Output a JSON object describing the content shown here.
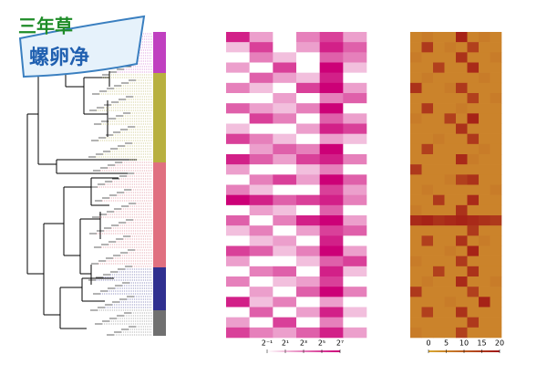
{
  "logo": {
    "line1": "三年草",
    "line2": "螺卵净"
  },
  "chart_data": [
    {
      "type": "heatmap",
      "low_color": "#ffffff",
      "high_color": "#cc0077",
      "xlim": [
        -1,
        7
      ],
      "xticks": [
        {
          "value": -1,
          "label": "2⁻¹"
        },
        {
          "value": 1,
          "label": "2¹"
        },
        {
          "value": 3,
          "label": "2³"
        },
        {
          "value": 5,
          "label": "2⁵"
        },
        {
          "value": 7,
          "label": "2⁷"
        }
      ],
      "rows": [
        [
          6,
          2,
          -1,
          3,
          5,
          2
        ],
        [
          1,
          5,
          -1,
          2,
          6,
          4
        ],
        [
          -1,
          3,
          1,
          -1,
          4,
          3
        ],
        [
          2,
          -1,
          5,
          -1,
          7,
          1
        ],
        [
          -1,
          4,
          2,
          1,
          6,
          -1
        ],
        [
          3,
          1,
          -1,
          5,
          7,
          2
        ],
        [
          -1,
          -1,
          2,
          -1,
          3,
          4
        ],
        [
          4,
          2,
          1,
          3,
          7,
          -1
        ],
        [
          -1,
          5,
          3,
          -1,
          4,
          2
        ],
        [
          1,
          -1,
          -1,
          2,
          6,
          5
        ],
        [
          5,
          3,
          1,
          -1,
          2,
          1
        ],
        [
          -1,
          2,
          4,
          3,
          7,
          -1
        ],
        [
          6,
          4,
          2,
          5,
          6,
          3
        ],
        [
          2,
          -1,
          -1,
          1,
          3,
          -1
        ],
        [
          -1,
          3,
          5,
          2,
          7,
          4
        ],
        [
          3,
          1,
          -1,
          -1,
          5,
          2
        ],
        [
          7,
          6,
          4,
          5,
          6,
          3
        ],
        [
          -1,
          2,
          1,
          -1,
          4,
          -1
        ],
        [
          4,
          -1,
          3,
          6,
          7,
          2
        ],
        [
          1,
          3,
          -1,
          2,
          5,
          4
        ],
        [
          -1,
          1,
          2,
          -1,
          6,
          -1
        ],
        [
          5,
          4,
          1,
          3,
          7,
          2
        ],
        [
          2,
          -1,
          -1,
          1,
          4,
          5
        ],
        [
          -1,
          3,
          4,
          -1,
          6,
          1
        ],
        [
          3,
          -1,
          1,
          2,
          5,
          -1
        ],
        [
          -1,
          2,
          -1,
          4,
          7,
          3
        ],
        [
          6,
          1,
          3,
          -1,
          2,
          -1
        ],
        [
          -1,
          4,
          -1,
          2,
          6,
          1
        ],
        [
          2,
          -1,
          5,
          -1,
          3,
          -1
        ],
        [
          5,
          3,
          2,
          4,
          6,
          2
        ]
      ]
    },
    {
      "type": "heatmap",
      "low_color": "#d9a832",
      "high_color": "#a01414",
      "xlim": [
        0,
        20
      ],
      "xticks": [
        0,
        5,
        10,
        15,
        20
      ],
      "rows": [
        [
          5,
          6,
          5,
          5,
          18,
          5,
          6,
          5
        ],
        [
          5,
          15,
          5,
          6,
          5,
          14,
          5,
          5
        ],
        [
          6,
          5,
          5,
          5,
          16,
          5,
          5,
          6
        ],
        [
          5,
          5,
          14,
          5,
          5,
          17,
          5,
          5
        ],
        [
          5,
          6,
          5,
          5,
          5,
          5,
          6,
          5
        ],
        [
          16,
          5,
          5,
          6,
          15,
          5,
          5,
          5
        ],
        [
          5,
          5,
          5,
          5,
          5,
          14,
          5,
          6
        ],
        [
          5,
          15,
          5,
          5,
          6,
          5,
          5,
          5
        ],
        [
          6,
          5,
          5,
          14,
          5,
          18,
          5,
          5
        ],
        [
          5,
          5,
          5,
          5,
          16,
          5,
          5,
          5
        ],
        [
          5,
          5,
          6,
          5,
          5,
          15,
          5,
          5
        ],
        [
          5,
          14,
          5,
          5,
          5,
          5,
          6,
          5
        ],
        [
          5,
          5,
          5,
          5,
          17,
          6,
          5,
          5
        ],
        [
          15,
          5,
          5,
          5,
          5,
          5,
          5,
          5
        ],
        [
          5,
          5,
          5,
          6,
          14,
          16,
          5,
          5
        ],
        [
          5,
          6,
          5,
          5,
          5,
          5,
          5,
          6
        ],
        [
          5,
          5,
          15,
          5,
          5,
          17,
          5,
          5
        ],
        [
          6,
          5,
          5,
          5,
          16,
          5,
          5,
          5
        ],
        [
          17,
          18,
          16,
          17,
          18,
          17,
          16,
          15
        ],
        [
          5,
          5,
          5,
          5,
          5,
          15,
          5,
          5
        ],
        [
          5,
          14,
          5,
          5,
          16,
          5,
          6,
          5
        ],
        [
          5,
          5,
          5,
          6,
          5,
          18,
          5,
          5
        ],
        [
          6,
          5,
          5,
          5,
          15,
          5,
          5,
          5
        ],
        [
          5,
          5,
          14,
          5,
          5,
          16,
          5,
          5
        ],
        [
          5,
          6,
          5,
          5,
          17,
          5,
          5,
          6
        ],
        [
          15,
          5,
          5,
          5,
          5,
          14,
          5,
          5
        ],
        [
          5,
          5,
          5,
          6,
          5,
          5,
          18,
          5
        ],
        [
          5,
          14,
          5,
          5,
          16,
          5,
          5,
          5
        ],
        [
          5,
          5,
          5,
          5,
          5,
          15,
          5,
          5
        ],
        [
          6,
          5,
          5,
          5,
          14,
          5,
          5,
          5
        ]
      ]
    }
  ]
}
